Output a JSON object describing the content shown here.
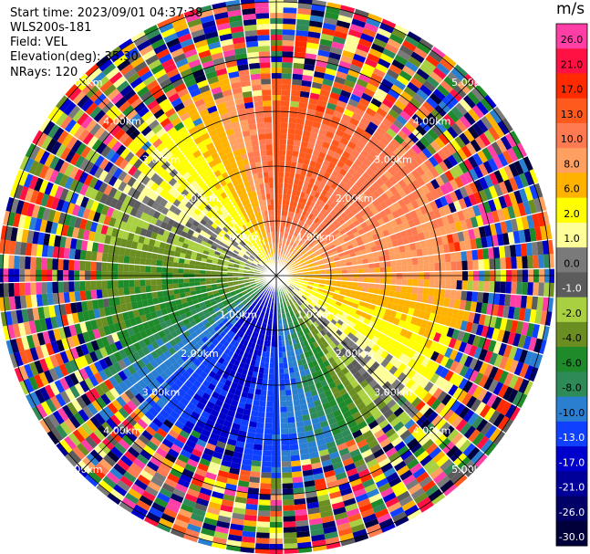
{
  "header": {
    "start_time": "Start time: 2023/09/01 04:37:38",
    "instrument": "WLS200s-181",
    "field": "Field: VEL",
    "elevation": "Elevation(deg): 35.30",
    "nrays": "NRays: 120"
  },
  "colorbar": {
    "units": "m/s",
    "bins": [
      {
        "label": "26.0",
        "color": "#ff3fa5",
        "text_color": "#000000"
      },
      {
        "label": "21.0",
        "color": "#ff1144",
        "text_color": "#000000"
      },
      {
        "label": "17.0",
        "color": "#ff2a00",
        "text_color": "#000000"
      },
      {
        "label": "13.0",
        "color": "#ff5a1e",
        "text_color": "#000000"
      },
      {
        "label": "10.0",
        "color": "#ff7a50",
        "text_color": "#000000"
      },
      {
        "label": "8.0",
        "color": "#ffa060",
        "text_color": "#000000"
      },
      {
        "label": "6.0",
        "color": "#ffb300",
        "text_color": "#000000"
      },
      {
        "label": "2.0",
        "color": "#ffff00",
        "text_color": "#000000"
      },
      {
        "label": "1.0",
        "color": "#ffff99",
        "text_color": "#000000"
      },
      {
        "label": "0.0",
        "color": "#7a7a7a",
        "text_color": "#000000"
      },
      {
        "label": "-1.0",
        "color": "#5c5c5c",
        "text_color": "#ffffff"
      },
      {
        "label": "-2.0",
        "color": "#a8d040",
        "text_color": "#000000"
      },
      {
        "label": "-4.0",
        "color": "#6b8e23",
        "text_color": "#000000"
      },
      {
        "label": "-6.0",
        "color": "#1e8a2a",
        "text_color": "#000000"
      },
      {
        "label": "-8.0",
        "color": "#2e8b57",
        "text_color": "#000000"
      },
      {
        "label": "-10.0",
        "color": "#2a7fd0",
        "text_color": "#000000"
      },
      {
        "label": "-13.0",
        "color": "#1040ff",
        "text_color": "#ffffff"
      },
      {
        "label": "-17.0",
        "color": "#0000cc",
        "text_color": "#ffffff"
      },
      {
        "label": "-21.0",
        "color": "#000099",
        "text_color": "#ffffff"
      },
      {
        "label": "-26.0",
        "color": "#000066",
        "text_color": "#ffffff"
      },
      {
        "label": "-30.0",
        "color": "#00003a",
        "text_color": "#ffffff"
      }
    ]
  },
  "chart_data": {
    "type": "heatmap",
    "subtype": "radar-ppi",
    "field": "VEL",
    "units": "m/s",
    "nrays": 120,
    "range_rings_km": [
      1.0,
      2.0,
      3.0,
      4.0,
      5.0
    ],
    "ring_labels": [
      "1.00km",
      "2.00km",
      "3.00km",
      "4.00km",
      "5.00km"
    ],
    "center_velocity_pattern": [
      {
        "azimuth_deg": 0,
        "velocity_ms": 13.0
      },
      {
        "azimuth_deg": 45,
        "velocity_ms": 10.0
      },
      {
        "azimuth_deg": 90,
        "velocity_ms": 8.0
      },
      {
        "azimuth_deg": 120,
        "velocity_ms": 2.0
      },
      {
        "azimuth_deg": 135,
        "velocity_ms": 0.0
      },
      {
        "azimuth_deg": 160,
        "velocity_ms": -8.0
      },
      {
        "azimuth_deg": 200,
        "velocity_ms": -17.0
      },
      {
        "azimuth_deg": 250,
        "velocity_ms": -6.0
      },
      {
        "azimuth_deg": 280,
        "velocity_ms": -4.0
      },
      {
        "azimuth_deg": 300,
        "velocity_ms": 0.0
      },
      {
        "azimuth_deg": 320,
        "velocity_ms": 2.0
      },
      {
        "azimuth_deg": 340,
        "velocity_ms": 6.0
      }
    ],
    "noise_beyond_km": 3.8
  }
}
